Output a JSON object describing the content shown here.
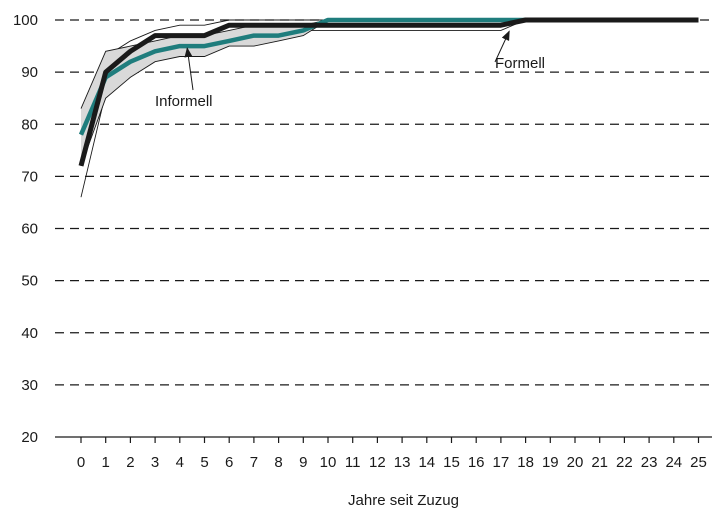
{
  "chart_data": {
    "type": "line",
    "xlabel": "Jahre seit Zuzug",
    "ylabel": "",
    "xlim": [
      0,
      25
    ],
    "ylim": [
      20,
      100
    ],
    "x_ticks": [
      0,
      1,
      2,
      3,
      4,
      5,
      6,
      7,
      8,
      9,
      10,
      11,
      12,
      13,
      14,
      15,
      16,
      17,
      18,
      19,
      20,
      21,
      22,
      23,
      24,
      25
    ],
    "y_ticks": [
      20,
      30,
      40,
      50,
      60,
      70,
      80,
      90,
      100
    ],
    "grid": "dashed horizontal",
    "x": [
      0,
      1,
      2,
      3,
      4,
      5,
      6,
      7,
      8,
      9,
      10,
      11,
      12,
      13,
      14,
      15,
      16,
      17,
      18,
      19,
      20,
      21,
      22,
      23,
      24,
      25
    ],
    "series": [
      {
        "name": "Formell",
        "color": "#1a1a1a",
        "values": [
          72,
          90,
          94,
          97,
          97,
          97,
          99,
          99,
          99,
          99,
          99,
          99,
          99,
          99,
          99,
          99,
          99,
          99,
          100,
          100,
          100,
          100,
          100,
          100,
          100,
          100
        ],
        "ci_upper": [
          78,
          93,
          96,
          98,
          99,
          99,
          100,
          100,
          100,
          100,
          100,
          100,
          100,
          100,
          100,
          100,
          100,
          100,
          100,
          100,
          100,
          100,
          100,
          100,
          100,
          100
        ],
        "ci_lower": [
          66,
          86,
          91,
          94,
          95,
          95,
          97,
          97,
          98,
          98,
          98,
          98,
          98,
          98,
          98,
          98,
          98,
          98,
          100,
          100,
          100,
          100,
          100,
          100,
          100,
          100
        ],
        "ci_fill": "none",
        "ci_stroke": "#1a1a1a"
      },
      {
        "name": "Informell",
        "color": "#1f7d7d",
        "values": [
          78,
          89,
          92,
          94,
          95,
          95,
          96,
          97,
          97,
          98,
          100,
          100,
          100,
          100,
          100,
          100,
          100,
          100,
          100,
          100,
          100,
          100,
          100,
          100,
          100,
          100
        ],
        "ci_upper": [
          83,
          94,
          95,
          96,
          97,
          97,
          98,
          99,
          99,
          99,
          100,
          100,
          100,
          100,
          100,
          100,
          100,
          100,
          100,
          100,
          100,
          100,
          100,
          100,
          100,
          100
        ],
        "ci_lower": [
          72,
          85,
          89,
          92,
          93,
          93,
          95,
          95,
          96,
          97,
          100,
          100,
          100,
          100,
          100,
          100,
          100,
          100,
          100,
          100,
          100,
          100,
          100,
          100,
          100,
          100
        ],
        "ci_fill": "#d9d9d9",
        "ci_stroke": "#1a1a1a"
      }
    ],
    "annotations": [
      {
        "text": "Formell",
        "series": "Formell",
        "x": 17.5,
        "y": 99
      },
      {
        "text": "Informell",
        "series": "Informell",
        "x": 4.3,
        "y": 95
      }
    ]
  }
}
